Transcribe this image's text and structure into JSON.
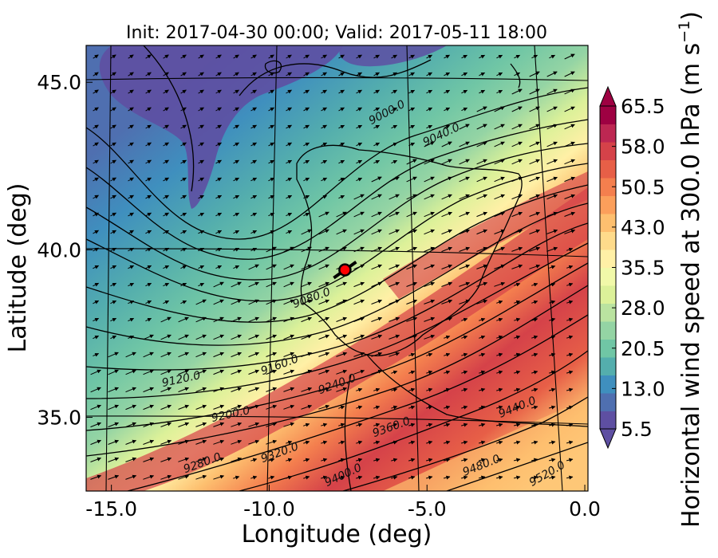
{
  "title": "Init: 2017-04-30 00:00; Valid: 2017-05-11 18:00",
  "x_axis": {
    "label": "Longitude (deg)",
    "range": [
      -15.8,
      0.1
    ],
    "ticks": [
      {
        "value": -15.0,
        "label": "-15.0"
      },
      {
        "value": -10.0,
        "label": "-10.0"
      },
      {
        "value": -5.0,
        "label": "-5.0"
      },
      {
        "value": 0.0,
        "label": "0.0"
      }
    ]
  },
  "y_axis": {
    "label": "Latitude (deg)",
    "range": [
      32.8,
      46.1
    ],
    "ticks": [
      {
        "value": 35.0,
        "label": "35.0"
      },
      {
        "value": 40.0,
        "label": "40.0"
      },
      {
        "value": 45.0,
        "label": "45.0"
      }
    ]
  },
  "colorbar": {
    "label": "Horizontal wind speed at 300.0 hPa (m s",
    "label_superscript": "−1",
    "label_tail": ")",
    "extend": "both",
    "ticks": [
      "65.5",
      "58.0",
      "50.5",
      "43.0",
      "35.5",
      "28.0",
      "20.5",
      "13.0",
      "5.5"
    ],
    "colors": [
      "#5e4fa2",
      "#4f6fb0",
      "#3f8fbe",
      "#54aead",
      "#70c6a5",
      "#94d4a4",
      "#bae3a0",
      "#dcf199",
      "#f1f9a9",
      "#fff0a6",
      "#fedb8b",
      "#fdbf6f",
      "#fb9f5b",
      "#f47f4e",
      "#e75f47",
      "#d54249",
      "#bd2752",
      "#9e0142"
    ]
  },
  "contour_labels": [
    "9000.0",
    "9040.0",
    "9080.0",
    "9120.0",
    "9160.0",
    "9200.0",
    "9240.0",
    "9280.0",
    "9320.0",
    "9360.0",
    "9400.0",
    "9440.0",
    "9480.0",
    "9520.0"
  ],
  "marker": {
    "name": "location-marker",
    "lon": -7.6,
    "lat": 39.4,
    "color": "#ff0000"
  }
}
